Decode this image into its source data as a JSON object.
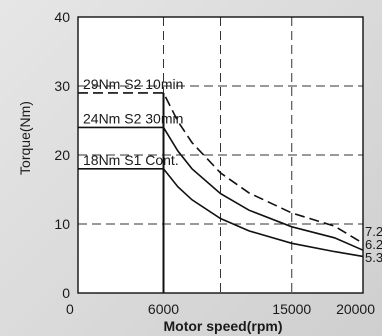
{
  "chart_data": {
    "type": "line",
    "xlabel": "Motor speed(rpm)",
    "ylabel": "Torque(Nm)",
    "xlim": [
      0,
      20000
    ],
    "ylim": [
      0,
      40
    ],
    "x_ticks": [
      "0",
      "6000",
      "15000",
      "20000"
    ],
    "y_ticks": [
      "0",
      "10",
      "20",
      "30",
      "40"
    ],
    "grid": "dashed",
    "series": [
      {
        "name": "29Nm S2 10min",
        "end_label": "7.2",
        "line_style": "dashed",
        "points": [
          [
            0,
            29
          ],
          [
            6000,
            29
          ],
          [
            7000,
            24.9
          ],
          [
            8000,
            21.8
          ],
          [
            10000,
            17.4
          ],
          [
            12000,
            14.5
          ],
          [
            15000,
            11.6
          ],
          [
            18000,
            9.7
          ],
          [
            20000,
            7.2
          ]
        ]
      },
      {
        "name": "24Nm S2 30min",
        "end_label": "6.2",
        "line_style": "solid",
        "points": [
          [
            0,
            24
          ],
          [
            6000,
            24
          ],
          [
            7000,
            20.6
          ],
          [
            8000,
            18
          ],
          [
            10000,
            14.4
          ],
          [
            12000,
            12
          ],
          [
            15000,
            9.6
          ],
          [
            18000,
            8
          ],
          [
            20000,
            6.2
          ]
        ]
      },
      {
        "name": "18Nm S1 Cont.",
        "end_label": "5.3",
        "line_style": "solid",
        "points": [
          [
            0,
            18
          ],
          [
            6000,
            18
          ],
          [
            7000,
            15.4
          ],
          [
            8000,
            13.5
          ],
          [
            10000,
            10.8
          ],
          [
            12000,
            9
          ],
          [
            15000,
            7.2
          ],
          [
            18000,
            6
          ],
          [
            20000,
            5.3
          ]
        ]
      }
    ]
  }
}
